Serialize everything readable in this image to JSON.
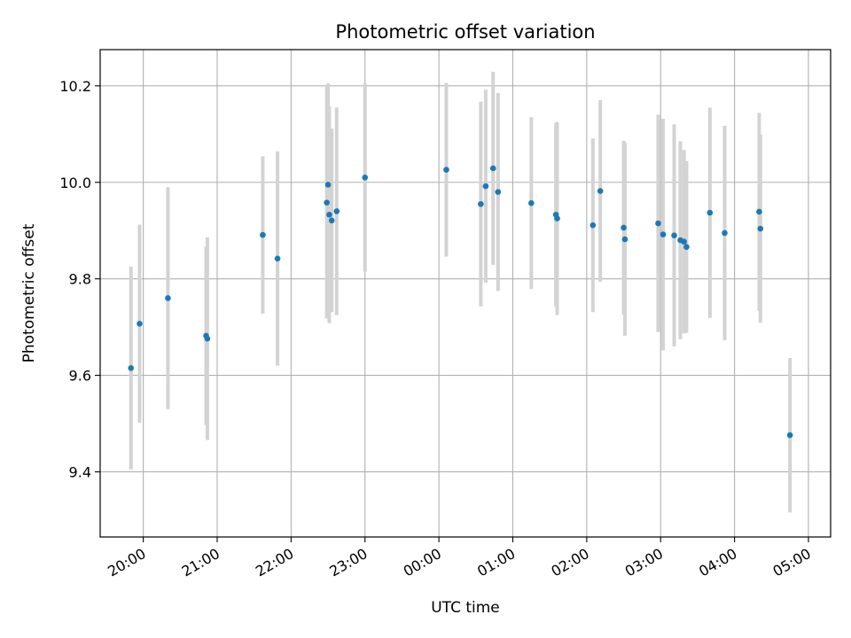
{
  "chart_data": {
    "type": "scatter",
    "title": "Photometric offset variation",
    "xlabel": "UTC time",
    "ylabel": "Photometric offset",
    "x_axis_kind": "time",
    "x_start": "19:25",
    "x_end": "05:18",
    "ylim": [
      9.265,
      10.275
    ],
    "grid": true,
    "xticks": [
      "20:00",
      "21:00",
      "22:00",
      "23:00",
      "00:00",
      "01:00",
      "02:00",
      "03:00",
      "04:00",
      "05:00"
    ],
    "yticks": [
      9.4,
      9.6,
      9.8,
      10.0,
      10.2
    ],
    "ytick_labels": [
      "9.4",
      "9.6",
      "9.8",
      "10.0",
      "10.2"
    ],
    "colors": {
      "point": "#1f77b4",
      "errorbar": "#d3d3d3",
      "grid": "#b0b0b0"
    },
    "points": [
      {
        "t": "19:50",
        "y": 9.615,
        "err": 0.21
      },
      {
        "t": "19:57",
        "y": 9.707,
        "err": 0.205
      },
      {
        "t": "20:20",
        "y": 9.76,
        "err": 0.23
      },
      {
        "t": "20:51",
        "y": 9.682,
        "err": 0.185
      },
      {
        "t": "20:52",
        "y": 9.676,
        "err": 0.21
      },
      {
        "t": "21:37",
        "y": 9.891,
        "err": 0.163
      },
      {
        "t": "21:49",
        "y": 9.842,
        "err": 0.222
      },
      {
        "t": "22:29",
        "y": 9.958,
        "err": 0.24
      },
      {
        "t": "22:30",
        "y": 9.995,
        "err": 0.21
      },
      {
        "t": "22:31",
        "y": 9.933,
        "err": 0.225
      },
      {
        "t": "22:33",
        "y": 9.921,
        "err": 0.19
      },
      {
        "t": "22:37",
        "y": 9.94,
        "err": 0.215
      },
      {
        "t": "23:00",
        "y": 10.01,
        "err": 0.195
      },
      {
        "t": "00:06",
        "y": 10.026,
        "err": 0.18
      },
      {
        "t": "00:34",
        "y": 9.955,
        "err": 0.212
      },
      {
        "t": "00:38",
        "y": 9.992,
        "err": 0.2
      },
      {
        "t": "00:44",
        "y": 10.029,
        "err": 0.2
      },
      {
        "t": "00:48",
        "y": 9.98,
        "err": 0.205
      },
      {
        "t": "01:15",
        "y": 9.957,
        "err": 0.178
      },
      {
        "t": "01:35",
        "y": 9.933,
        "err": 0.19
      },
      {
        "t": "01:36",
        "y": 9.925,
        "err": 0.2
      },
      {
        "t": "02:05",
        "y": 9.911,
        "err": 0.18
      },
      {
        "t": "02:11",
        "y": 9.982,
        "err": 0.188
      },
      {
        "t": "02:30",
        "y": 9.906,
        "err": 0.18
      },
      {
        "t": "02:31",
        "y": 9.882,
        "err": 0.2
      },
      {
        "t": "02:58",
        "y": 9.915,
        "err": 0.225
      },
      {
        "t": "03:02",
        "y": 9.892,
        "err": 0.24
      },
      {
        "t": "03:11",
        "y": 9.89,
        "err": 0.23
      },
      {
        "t": "03:16",
        "y": 9.88,
        "err": 0.205
      },
      {
        "t": "03:19",
        "y": 9.877,
        "err": 0.19
      },
      {
        "t": "03:21",
        "y": 9.866,
        "err": 0.178
      },
      {
        "t": "03:40",
        "y": 9.937,
        "err": 0.218
      },
      {
        "t": "03:52",
        "y": 9.895,
        "err": 0.222
      },
      {
        "t": "04:20",
        "y": 9.939,
        "err": 0.205
      },
      {
        "t": "04:21",
        "y": 9.904,
        "err": 0.195
      },
      {
        "t": "04:45",
        "y": 9.476,
        "err": 0.16
      }
    ]
  }
}
